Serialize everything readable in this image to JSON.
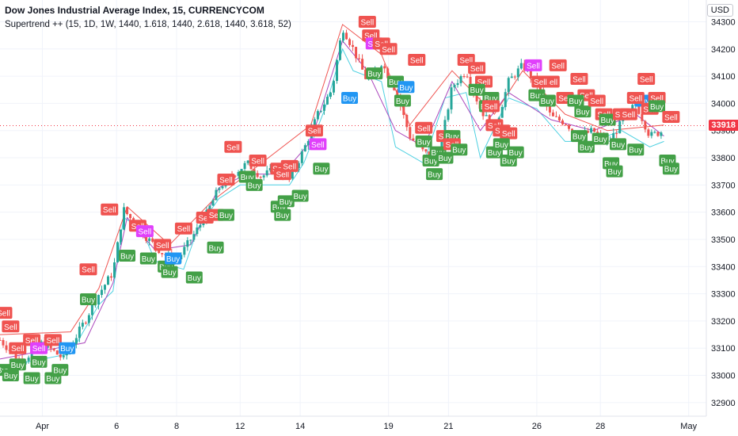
{
  "header": {
    "title": "Dow Jones Industrial Average Index, 15, CURRENCYCOM",
    "indicator": "Supertrend ++ (15, 1D, 1W, 1440, 1.618, 1440, 2.618, 1440, 3.618, 52)",
    "currency": "USD"
  },
  "last_price": {
    "label": "33918",
    "value": 33918,
    "color": "#f23645"
  },
  "colors": {
    "buy": "#43a047",
    "sell": "#ef5350",
    "buy_alt": "#2196f3",
    "sell_alt": "#e040fb",
    "up_candle": "#26a69a",
    "down_candle": "#ef5350",
    "st1": "#4dd0e1",
    "st2": "#ab47bc",
    "st3": "#ef5350",
    "axis_text": "#131722",
    "grid": "#f0f3fa"
  },
  "chart_data": {
    "type": "candlestick",
    "title": "Dow Jones Industrial Average Index, 15, CURRENCYCOM",
    "ylim": [
      32850,
      34380
    ],
    "y_ticks": [
      32900,
      33000,
      33100,
      33200,
      33300,
      33400,
      33500,
      33600,
      33700,
      33800,
      33900,
      34000,
      34100,
      34200,
      34300
    ],
    "x_labels": [
      "Apr",
      "6",
      "8",
      "12",
      "14",
      "19",
      "21",
      "26",
      "28",
      "May"
    ],
    "price_path": [
      [
        0,
        33130
      ],
      [
        3,
        33050
      ],
      [
        6,
        33120
      ],
      [
        9,
        33060
      ],
      [
        12,
        33200
      ],
      [
        14,
        33300
      ],
      [
        16,
        33380
      ],
      [
        17.5,
        33610
      ],
      [
        19,
        33560
      ],
      [
        21,
        33500
      ],
      [
        23,
        33450
      ],
      [
        25,
        33420
      ],
      [
        27,
        33500
      ],
      [
        29,
        33580
      ],
      [
        31,
        33690
      ],
      [
        33,
        33740
      ],
      [
        35,
        33780
      ],
      [
        37,
        33730
      ],
      [
        39,
        33760
      ],
      [
        41,
        33720
      ],
      [
        43,
        33830
      ],
      [
        45,
        33960
      ],
      [
        47,
        34050
      ],
      [
        48.5,
        34280
      ],
      [
        50,
        34200
      ],
      [
        52,
        34080
      ],
      [
        54,
        34150
      ],
      [
        56,
        34050
      ],
      [
        58,
        33880
      ],
      [
        60,
        33820
      ],
      [
        62,
        33790
      ],
      [
        64,
        34060
      ],
      [
        66,
        34120
      ],
      [
        68,
        33980
      ],
      [
        70,
        33900
      ],
      [
        72,
        34080
      ],
      [
        74,
        34140
      ],
      [
        76,
        34070
      ],
      [
        78,
        33950
      ],
      [
        80,
        33930
      ],
      [
        82,
        33880
      ],
      [
        84,
        33900
      ],
      [
        86,
        33850
      ],
      [
        88,
        33930
      ],
      [
        90,
        34000
      ],
      [
        92,
        33880
      ],
      [
        94,
        33900
      ]
    ],
    "supertrend_lines": [
      {
        "name": "",
        "color": "#4dd0e1",
        "values": [
          [
            0,
            33030
          ],
          [
            10,
            33080
          ],
          [
            14,
            33260
          ],
          [
            16,
            33310
          ],
          [
            17.5,
            33580
          ],
          [
            20,
            33540
          ],
          [
            22,
            33420
          ],
          [
            26,
            33390
          ],
          [
            28,
            33540
          ],
          [
            31,
            33650
          ],
          [
            34,
            33700
          ],
          [
            38,
            33700
          ],
          [
            41,
            33700
          ],
          [
            43,
            33780
          ],
          [
            46,
            33980
          ],
          [
            48.5,
            34200
          ],
          [
            50,
            34120
          ],
          [
            54,
            34080
          ],
          [
            56,
            33840
          ],
          [
            60,
            33780
          ],
          [
            63,
            34020
          ],
          [
            66,
            34040
          ],
          [
            68,
            33800
          ],
          [
            72,
            34020
          ],
          [
            76,
            33980
          ],
          [
            80,
            33860
          ],
          [
            84,
            33860
          ],
          [
            88,
            33900
          ],
          [
            92,
            33840
          ],
          [
            94,
            33860
          ]
        ]
      },
      {
        "name": "",
        "color": "#ab47bc",
        "values": [
          [
            0,
            33060
          ],
          [
            12,
            33120
          ],
          [
            16,
            33340
          ],
          [
            18,
            33580
          ],
          [
            22,
            33460
          ],
          [
            27,
            33480
          ],
          [
            31,
            33690
          ],
          [
            35,
            33740
          ],
          [
            40,
            33740
          ],
          [
            44,
            33860
          ],
          [
            48.5,
            34230
          ],
          [
            52,
            34120
          ],
          [
            56,
            33900
          ],
          [
            60,
            33840
          ],
          [
            64,
            34080
          ],
          [
            68,
            33900
          ],
          [
            72,
            34040
          ],
          [
            78,
            33940
          ],
          [
            84,
            33900
          ],
          [
            90,
            33960
          ],
          [
            94,
            33880
          ]
        ]
      },
      {
        "name": "",
        "color": "#ef5350",
        "values": [
          [
            0,
            33150
          ],
          [
            10,
            33160
          ],
          [
            14,
            33320
          ],
          [
            18,
            33620
          ],
          [
            24,
            33480
          ],
          [
            30,
            33640
          ],
          [
            38,
            33800
          ],
          [
            44,
            33920
          ],
          [
            48.5,
            34290
          ],
          [
            54,
            34180
          ],
          [
            58,
            33920
          ],
          [
            64,
            34120
          ],
          [
            70,
            33960
          ],
          [
            74,
            34120
          ],
          [
            80,
            33960
          ],
          [
            86,
            33900
          ],
          [
            94,
            33920
          ]
        ]
      }
    ],
    "signals": [
      {
        "x": 0.5,
        "y": 33230,
        "label": "Sell",
        "kind": "sell"
      },
      {
        "x": 1.5,
        "y": 33180,
        "label": "Sell",
        "kind": "sell"
      },
      {
        "x": 2.5,
        "y": 33100,
        "label": "Sell",
        "kind": "sell"
      },
      {
        "x": 4.5,
        "y": 33130,
        "label": "Sell",
        "kind": "sell"
      },
      {
        "x": 5.5,
        "y": 33100,
        "label": "Sell",
        "kind": "sell_alt"
      },
      {
        "x": 7.5,
        "y": 33130,
        "label": "Sell",
        "kind": "sell"
      },
      {
        "x": 9.5,
        "y": 33100,
        "label": "Buy",
        "kind": "buy_alt"
      },
      {
        "x": 0.5,
        "y": 33020,
        "label": "Buy",
        "kind": "buy"
      },
      {
        "x": 1.5,
        "y": 33000,
        "label": "Buy",
        "kind": "buy"
      },
      {
        "x": 2.5,
        "y": 33040,
        "label": "Buy",
        "kind": "buy"
      },
      {
        "x": 4.5,
        "y": 32990,
        "label": "Buy",
        "kind": "buy"
      },
      {
        "x": 5.5,
        "y": 33050,
        "label": "Buy",
        "kind": "buy"
      },
      {
        "x": 7.5,
        "y": 32990,
        "label": "Buy",
        "kind": "buy"
      },
      {
        "x": 8.5,
        "y": 33020,
        "label": "Buy",
        "kind": "buy"
      },
      {
        "x": 12.5,
        "y": 33390,
        "label": "Sell",
        "kind": "sell"
      },
      {
        "x": 12.5,
        "y": 33280,
        "label": "Buy",
        "kind": "buy"
      },
      {
        "x": 15.5,
        "y": 33610,
        "label": "Sell",
        "kind": "sell"
      },
      {
        "x": 18,
        "y": 33440,
        "label": "Buy",
        "kind": "buy"
      },
      {
        "x": 19.5,
        "y": 33550,
        "label": "Sell",
        "kind": "sell"
      },
      {
        "x": 20.5,
        "y": 33530,
        "label": "Sell",
        "kind": "sell_alt"
      },
      {
        "x": 21,
        "y": 33430,
        "label": "Buy",
        "kind": "buy"
      },
      {
        "x": 23,
        "y": 33480,
        "label": "Sell",
        "kind": "sell"
      },
      {
        "x": 23.5,
        "y": 33400,
        "label": "Buy",
        "kind": "buy"
      },
      {
        "x": 24.5,
        "y": 33430,
        "label": "Buy",
        "kind": "buy_alt"
      },
      {
        "x": 24,
        "y": 33380,
        "label": "Buy",
        "kind": "buy"
      },
      {
        "x": 26,
        "y": 33540,
        "label": "Sell",
        "kind": "sell"
      },
      {
        "x": 27.5,
        "y": 33360,
        "label": "Buy",
        "kind": "buy"
      },
      {
        "x": 29,
        "y": 33580,
        "label": "Sell",
        "kind": "sell"
      },
      {
        "x": 30.5,
        "y": 33590,
        "label": "Sell",
        "kind": "sell"
      },
      {
        "x": 30.5,
        "y": 33470,
        "label": "Buy",
        "kind": "buy"
      },
      {
        "x": 32,
        "y": 33590,
        "label": "Buy",
        "kind": "buy"
      },
      {
        "x": 32,
        "y": 33720,
        "label": "Sell",
        "kind": "sell"
      },
      {
        "x": 33,
        "y": 33840,
        "label": "Sell",
        "kind": "sell"
      },
      {
        "x": 35,
        "y": 33730,
        "label": "Buy",
        "kind": "buy"
      },
      {
        "x": 36.5,
        "y": 33790,
        "label": "Sell",
        "kind": "sell"
      },
      {
        "x": 36,
        "y": 33700,
        "label": "Buy",
        "kind": "buy"
      },
      {
        "x": 39.5,
        "y": 33760,
        "label": "Sell",
        "kind": "sell"
      },
      {
        "x": 40,
        "y": 33740,
        "label": "Sell",
        "kind": "sell"
      },
      {
        "x": 41,
        "y": 33770,
        "label": "Sell",
        "kind": "sell"
      },
      {
        "x": 39.5,
        "y": 33620,
        "label": "Buy",
        "kind": "buy"
      },
      {
        "x": 40.5,
        "y": 33640,
        "label": "Buy",
        "kind": "buy"
      },
      {
        "x": 40,
        "y": 33590,
        "label": "Buy",
        "kind": "buy"
      },
      {
        "x": 42.5,
        "y": 33660,
        "label": "Buy",
        "kind": "buy"
      },
      {
        "x": 44.5,
        "y": 33900,
        "label": "Sell",
        "kind": "sell"
      },
      {
        "x": 45,
        "y": 33850,
        "label": "Sell",
        "kind": "sell_alt"
      },
      {
        "x": 45.5,
        "y": 33760,
        "label": "Buy",
        "kind": "buy"
      },
      {
        "x": 49.5,
        "y": 34020,
        "label": "Buy",
        "kind": "buy_alt"
      },
      {
        "x": 52,
        "y": 34300,
        "label": "Sell",
        "kind": "sell"
      },
      {
        "x": 52.5,
        "y": 34250,
        "label": "Sell",
        "kind": "sell"
      },
      {
        "x": 53,
        "y": 34220,
        "label": "Sell",
        "kind": "sell_alt"
      },
      {
        "x": 54,
        "y": 34220,
        "label": "Sell",
        "kind": "sell"
      },
      {
        "x": 55,
        "y": 34200,
        "label": "Sell",
        "kind": "sell"
      },
      {
        "x": 53,
        "y": 34110,
        "label": "Buy",
        "kind": "buy"
      },
      {
        "x": 56,
        "y": 34080,
        "label": "Buy",
        "kind": "buy"
      },
      {
        "x": 57.5,
        "y": 34060,
        "label": "Buy",
        "kind": "buy_alt"
      },
      {
        "x": 57,
        "y": 34010,
        "label": "Buy",
        "kind": "buy"
      },
      {
        "x": 59,
        "y": 34160,
        "label": "Sell",
        "kind": "sell"
      },
      {
        "x": 60,
        "y": 33910,
        "label": "Sell",
        "kind": "sell"
      },
      {
        "x": 60,
        "y": 33860,
        "label": "Buy",
        "kind": "buy"
      },
      {
        "x": 63,
        "y": 33880,
        "label": "Sell",
        "kind": "sell"
      },
      {
        "x": 64,
        "y": 33880,
        "label": "Buy",
        "kind": "buy"
      },
      {
        "x": 61,
        "y": 33790,
        "label": "Buy",
        "kind": "buy"
      },
      {
        "x": 62,
        "y": 33820,
        "label": "Buy",
        "kind": "buy"
      },
      {
        "x": 63,
        "y": 33800,
        "label": "Buy",
        "kind": "buy"
      },
      {
        "x": 61.5,
        "y": 33740,
        "label": "Buy",
        "kind": "buy"
      },
      {
        "x": 64,
        "y": 33850,
        "label": "Sell",
        "kind": "sell"
      },
      {
        "x": 65,
        "y": 33830,
        "label": "Buy",
        "kind": "buy"
      },
      {
        "x": 66,
        "y": 34160,
        "label": "Sell",
        "kind": "sell"
      },
      {
        "x": 67.5,
        "y": 34130,
        "label": "Sell",
        "kind": "sell"
      },
      {
        "x": 68.5,
        "y": 34080,
        "label": "Sell",
        "kind": "sell"
      },
      {
        "x": 67.5,
        "y": 34050,
        "label": "Buy",
        "kind": "buy"
      },
      {
        "x": 69.5,
        "y": 34020,
        "label": "Buy",
        "kind": "buy"
      },
      {
        "x": 69,
        "y": 33990,
        "label": "Buy",
        "kind": "buy"
      },
      {
        "x": 69.5,
        "y": 33990,
        "label": "Sell",
        "kind": "sell"
      },
      {
        "x": 70,
        "y": 33920,
        "label": "Sell",
        "kind": "sell"
      },
      {
        "x": 71,
        "y": 33900,
        "label": "Sell",
        "kind": "sell"
      },
      {
        "x": 72,
        "y": 33890,
        "label": "Sell",
        "kind": "sell"
      },
      {
        "x": 70,
        "y": 33820,
        "label": "Buy",
        "kind": "buy"
      },
      {
        "x": 71,
        "y": 33850,
        "label": "Buy",
        "kind": "buy"
      },
      {
        "x": 72,
        "y": 33790,
        "label": "Buy",
        "kind": "buy"
      },
      {
        "x": 73,
        "y": 33820,
        "label": "Buy",
        "kind": "buy"
      },
      {
        "x": 75.5,
        "y": 34140,
        "label": "Sell",
        "kind": "sell_alt"
      },
      {
        "x": 79,
        "y": 34140,
        "label": "Sell",
        "kind": "sell"
      },
      {
        "x": 78,
        "y": 34080,
        "label": "Sell",
        "kind": "sell"
      },
      {
        "x": 76.5,
        "y": 34080,
        "label": "Sell",
        "kind": "sell"
      },
      {
        "x": 76,
        "y": 34030,
        "label": "Buy",
        "kind": "buy"
      },
      {
        "x": 77.5,
        "y": 34010,
        "label": "Buy",
        "kind": "buy"
      },
      {
        "x": 80,
        "y": 34020,
        "label": "Sell",
        "kind": "sell"
      },
      {
        "x": 82,
        "y": 34090,
        "label": "Sell",
        "kind": "sell"
      },
      {
        "x": 83,
        "y": 34030,
        "label": "Sell",
        "kind": "sell"
      },
      {
        "x": 81.5,
        "y": 34010,
        "label": "Buy",
        "kind": "buy"
      },
      {
        "x": 82.5,
        "y": 33970,
        "label": "Buy",
        "kind": "buy"
      },
      {
        "x": 84.5,
        "y": 34010,
        "label": "Sell",
        "kind": "sell"
      },
      {
        "x": 85.5,
        "y": 33960,
        "label": "Sell",
        "kind": "sell"
      },
      {
        "x": 82,
        "y": 33880,
        "label": "Buy",
        "kind": "buy"
      },
      {
        "x": 83,
        "y": 33840,
        "label": "Buy",
        "kind": "buy"
      },
      {
        "x": 85,
        "y": 33870,
        "label": "Buy",
        "kind": "buy"
      },
      {
        "x": 86,
        "y": 33940,
        "label": "Buy",
        "kind": "buy"
      },
      {
        "x": 87.5,
        "y": 33850,
        "label": "Buy",
        "kind": "buy"
      },
      {
        "x": 88,
        "y": 33960,
        "label": "Sell",
        "kind": "sell"
      },
      {
        "x": 89,
        "y": 33960,
        "label": "Sell",
        "kind": "sell"
      },
      {
        "x": 86.5,
        "y": 33780,
        "label": "Buy",
        "kind": "buy"
      },
      {
        "x": 87,
        "y": 33750,
        "label": "Buy",
        "kind": "buy"
      },
      {
        "x": 90,
        "y": 33830,
        "label": "Buy",
        "kind": "buy"
      },
      {
        "x": 91,
        "y": 34010,
        "label": "Buy",
        "kind": "buy_alt"
      },
      {
        "x": 91.5,
        "y": 34090,
        "label": "Sell",
        "kind": "sell"
      },
      {
        "x": 90,
        "y": 34020,
        "label": "Sell",
        "kind": "sell"
      },
      {
        "x": 93,
        "y": 34020,
        "label": "Sell",
        "kind": "sell"
      },
      {
        "x": 92,
        "y": 33980,
        "label": "Sell",
        "kind": "sell"
      },
      {
        "x": 93,
        "y": 33990,
        "label": "Buy",
        "kind": "buy"
      },
      {
        "x": 95,
        "y": 33950,
        "label": "Sell",
        "kind": "sell"
      },
      {
        "x": 94.5,
        "y": 33790,
        "label": "Buy",
        "kind": "buy"
      },
      {
        "x": 95,
        "y": 33760,
        "label": "Buy",
        "kind": "buy"
      }
    ]
  }
}
